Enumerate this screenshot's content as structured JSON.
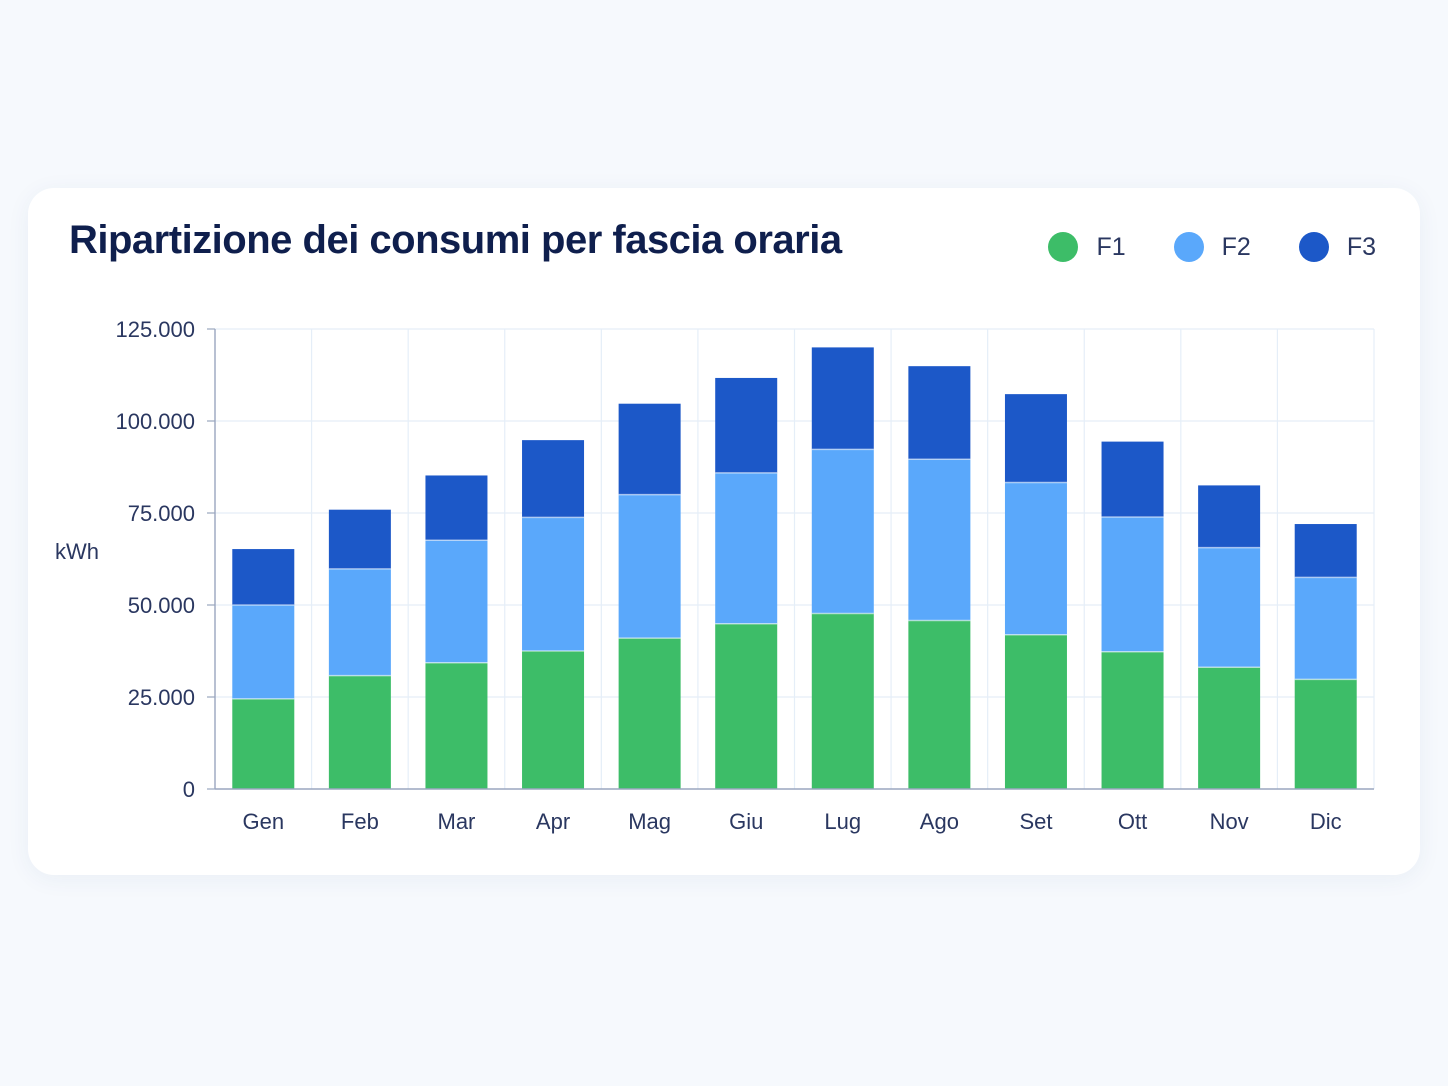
{
  "colors": {
    "F1": "#3dbd68",
    "F2": "#5aa8fb",
    "F3": "#1c58c8",
    "grid": "#e5eef8",
    "axis": "#9aa6bf"
  },
  "legend": [
    {
      "key": "F1",
      "label": "F1"
    },
    {
      "key": "F2",
      "label": "F2"
    },
    {
      "key": "F3",
      "label": "F3"
    }
  ],
  "chart_data": {
    "type": "bar",
    "stacked": true,
    "title": "Ripartizione dei consumi per fascia oraria",
    "xlabel": "",
    "ylabel": "kWh",
    "ylim": [
      0,
      125000
    ],
    "yticks": [
      0,
      25000,
      50000,
      75000,
      100000,
      125000
    ],
    "ytick_labels": [
      "0",
      "25.000",
      "50.000",
      "75.000",
      "100.000",
      "125.000"
    ],
    "grid": true,
    "legend_position": "top-right",
    "categories": [
      "Gen",
      "Feb",
      "Mar",
      "Apr",
      "Mag",
      "Giu",
      "Lug",
      "Ago",
      "Set",
      "Ott",
      "Nov",
      "Dic"
    ],
    "series": [
      {
        "name": "F1",
        "values": [
          24500,
          30800,
          34300,
          37500,
          41000,
          44900,
          47700,
          45800,
          41900,
          37300,
          33100,
          29800
        ]
      },
      {
        "name": "F2",
        "values": [
          25500,
          29000,
          33300,
          36300,
          39000,
          41000,
          44600,
          43800,
          41400,
          36600,
          32500,
          27700
        ]
      },
      {
        "name": "F3",
        "values": [
          15200,
          16100,
          17600,
          21000,
          24700,
          25800,
          27700,
          25300,
          24000,
          20500,
          16900,
          14500
        ]
      }
    ]
  }
}
